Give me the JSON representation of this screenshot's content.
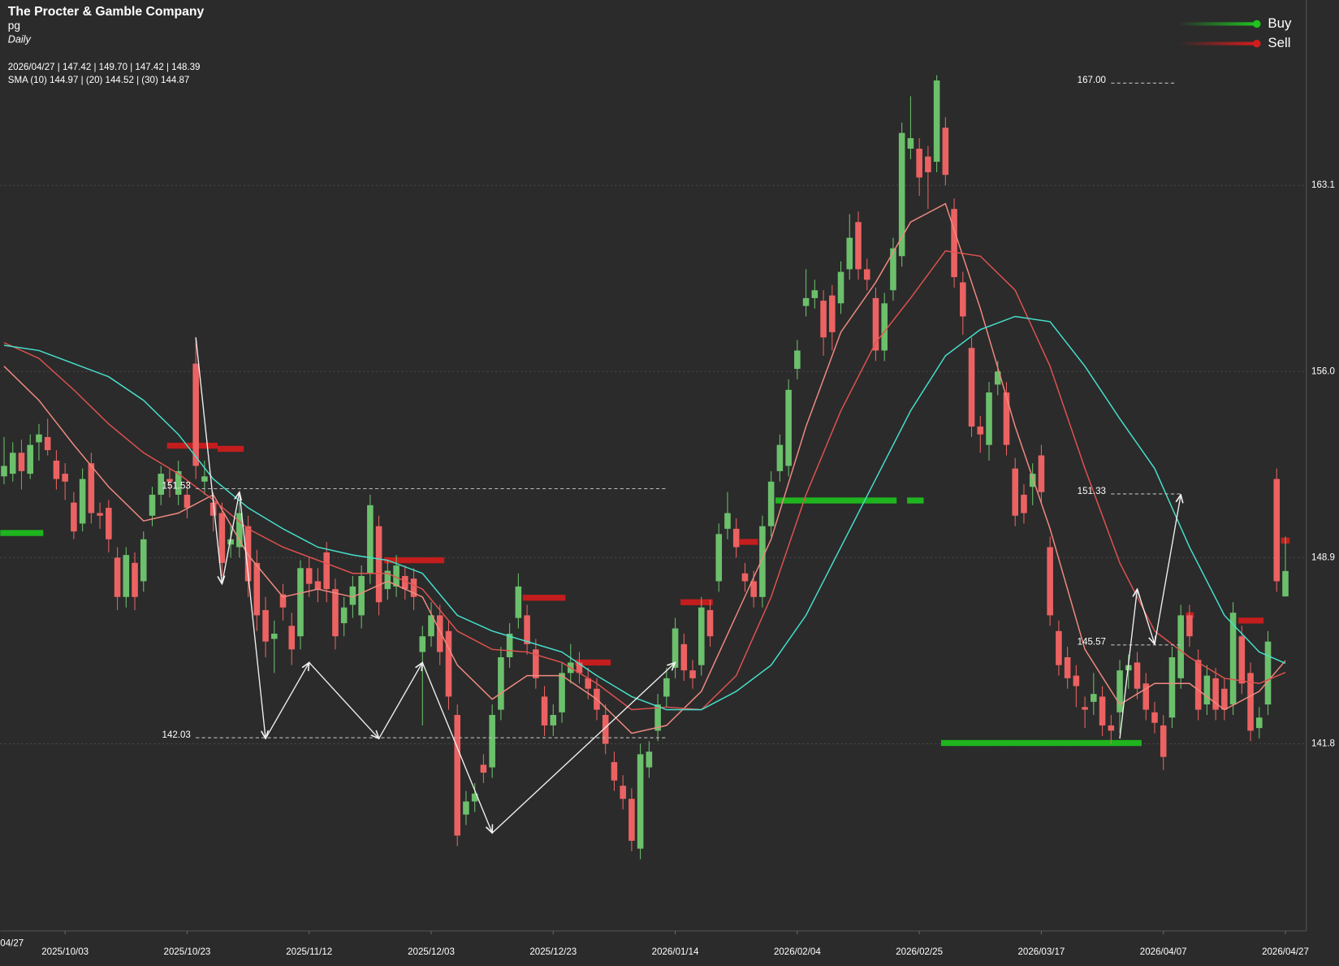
{
  "chart_data": {
    "type": "candlestick",
    "title": "The Procter & Gamble Company",
    "symbol": "pg",
    "interval": "Daily",
    "info_line": "2026/04/27 | 147.42 | 149.70 | 147.42 | 148.39",
    "sma_line": "SMA (10) 144.97 | (20) 144.52 | (30) 144.87",
    "colors": {
      "up": "#6cc06c",
      "down": "#ec6262",
      "background": "#2b2b2b",
      "grid": "#4a4a4a",
      "text": "#ffffff",
      "zigzag": "#f0f0f0",
      "level": "#bbbbbb"
    },
    "xlim": [
      -0.44,
      149.4
    ],
    "ylim": [
      134.66,
      170.17
    ],
    "yticks": [
      163.1,
      {
        "value": 156,
        "label": "156.0"
      },
      148.9,
      141.8
    ],
    "grid": true,
    "x_edge_label": "04/27",
    "xticks": [
      {
        "value": 7,
        "label": "2025/10/03"
      },
      {
        "value": 21,
        "label": "2025/10/23"
      },
      {
        "value": 35,
        "label": "2025/11/12"
      },
      {
        "value": 49,
        "label": "2025/12/03"
      },
      {
        "value": 63,
        "label": "2025/12/23"
      },
      {
        "value": 77,
        "label": "2026/01/14"
      },
      {
        "value": 91,
        "label": "2026/02/04"
      },
      {
        "value": 105,
        "label": "2026/02/25"
      },
      {
        "value": 119,
        "label": "2026/03/17"
      },
      {
        "value": 133,
        "label": "2026/04/07"
      },
      {
        "value": 147,
        "label": "2026/04/27"
      }
    ],
    "ohlc": [
      [
        152.0,
        153.5,
        151.7,
        152.4
      ],
      [
        152.1,
        153.3,
        151.8,
        152.9
      ],
      [
        152.9,
        153.4,
        151.5,
        152.2
      ],
      [
        152.1,
        153.6,
        151.9,
        153.2
      ],
      [
        153.3,
        154.0,
        152.6,
        153.6
      ],
      [
        153.5,
        154.2,
        152.8,
        153.0
      ],
      [
        152.6,
        153.0,
        151.5,
        151.9
      ],
      [
        152.1,
        152.5,
        151.1,
        151.8
      ],
      [
        151.0,
        151.4,
        149.6,
        149.9
      ],
      [
        150.2,
        152.3,
        149.9,
        151.9
      ],
      [
        152.5,
        152.9,
        150.2,
        150.6
      ],
      [
        150.6,
        151.0,
        150.0,
        150.5
      ],
      [
        150.8,
        151.1,
        149.1,
        149.6
      ],
      [
        148.9,
        149.3,
        146.9,
        147.4
      ],
      [
        147.4,
        149.3,
        147.0,
        149.0
      ],
      [
        148.7,
        149.1,
        146.9,
        147.4
      ],
      [
        148.0,
        149.9,
        147.6,
        149.6
      ],
      [
        150.5,
        151.6,
        150.1,
        151.3
      ],
      [
        151.3,
        152.4,
        150.9,
        152.1
      ],
      [
        151.9,
        152.3,
        151.2,
        151.8
      ],
      [
        151.3,
        152.6,
        150.9,
        152.2
      ],
      [
        151.3,
        151.8,
        150.4,
        150.8
      ],
      [
        156.3,
        157.3,
        151.9,
        152.4
      ],
      [
        151.8,
        152.6,
        151.3,
        152.0
      ],
      [
        151.0,
        151.4,
        149.9,
        150.5
      ],
      [
        150.6,
        151.0,
        148.2,
        148.7
      ],
      [
        149.4,
        150.1,
        148.9,
        149.6
      ],
      [
        149.3,
        151.0,
        148.9,
        150.6
      ],
      [
        150.1,
        150.5,
        147.4,
        148.0
      ],
      [
        148.7,
        149.2,
        146.1,
        146.7
      ],
      [
        146.9,
        147.4,
        145.1,
        145.7
      ],
      [
        145.8,
        146.5,
        144.5,
        146.0
      ],
      [
        147.5,
        147.9,
        146.5,
        147.0
      ],
      [
        146.3,
        146.8,
        144.8,
        145.4
      ],
      [
        145.9,
        148.8,
        145.4,
        148.5
      ],
      [
        148.5,
        148.9,
        147.4,
        147.9
      ],
      [
        148.0,
        148.5,
        147.2,
        147.7
      ],
      [
        149.1,
        149.5,
        147.2,
        147.7
      ],
      [
        147.7,
        148.1,
        145.4,
        145.9
      ],
      [
        146.4,
        147.4,
        145.9,
        147.0
      ],
      [
        147.1,
        148.2,
        146.6,
        147.8
      ],
      [
        146.7,
        148.6,
        146.2,
        148.2
      ],
      [
        148.3,
        151.3,
        147.9,
        150.9
      ],
      [
        150.1,
        150.5,
        146.7,
        147.2
      ],
      [
        147.7,
        148.8,
        147.3,
        148.4
      ],
      [
        147.8,
        149.0,
        147.4,
        148.6
      ],
      [
        148.2,
        148.6,
        147.3,
        147.7
      ],
      [
        148.1,
        148.5,
        146.9,
        147.4
      ],
      [
        145.3,
        146.3,
        142.5,
        145.9
      ],
      [
        145.9,
        147.2,
        145.5,
        146.7
      ],
      [
        146.7,
        147.1,
        144.8,
        145.3
      ],
      [
        146.1,
        146.5,
        143.1,
        143.6
      ],
      [
        142.9,
        143.3,
        137.9,
        138.3
      ],
      [
        139.1,
        140.0,
        138.7,
        139.6
      ],
      [
        139.6,
        140.3,
        139.2,
        139.9
      ],
      [
        141.0,
        141.4,
        140.3,
        140.7
      ],
      [
        140.9,
        143.3,
        140.5,
        142.9
      ],
      [
        143.1,
        145.5,
        142.7,
        145.1
      ],
      [
        145.1,
        146.4,
        144.7,
        146.0
      ],
      [
        146.6,
        148.3,
        146.2,
        147.8
      ],
      [
        146.7,
        147.1,
        145.2,
        145.6
      ],
      [
        145.4,
        145.8,
        143.9,
        144.3
      ],
      [
        143.6,
        144.0,
        142.1,
        142.5
      ],
      [
        142.5,
        143.3,
        142.1,
        142.9
      ],
      [
        143.0,
        144.9,
        142.6,
        144.5
      ],
      [
        144.5,
        145.6,
        144.1,
        144.9
      ],
      [
        144.9,
        145.3,
        144.1,
        144.5
      ],
      [
        144.3,
        144.7,
        143.5,
        143.9
      ],
      [
        143.9,
        144.3,
        142.7,
        143.1
      ],
      [
        142.9,
        143.3,
        141.4,
        141.8
      ],
      [
        141.1,
        141.5,
        140.0,
        140.4
      ],
      [
        140.2,
        140.6,
        139.3,
        139.7
      ],
      [
        139.7,
        140.1,
        137.7,
        138.1
      ],
      [
        137.8,
        141.8,
        137.4,
        141.4
      ],
      [
        140.9,
        141.9,
        140.5,
        141.5
      ],
      [
        142.3,
        143.7,
        141.9,
        143.3
      ],
      [
        143.6,
        144.7,
        143.2,
        144.3
      ],
      [
        144.7,
        146.6,
        144.3,
        146.2
      ],
      [
        145.6,
        146.0,
        144.2,
        144.6
      ],
      [
        144.6,
        145.0,
        143.9,
        144.3
      ],
      [
        144.8,
        147.4,
        144.4,
        147.0
      ],
      [
        146.9,
        147.3,
        145.5,
        145.9
      ],
      [
        148.0,
        150.2,
        147.6,
        149.8
      ],
      [
        150.0,
        151.4,
        149.6,
        150.6
      ],
      [
        150.0,
        150.4,
        148.9,
        149.3
      ],
      [
        148.3,
        148.7,
        147.6,
        148.0
      ],
      [
        148.0,
        148.4,
        147.0,
        147.4
      ],
      [
        147.4,
        150.5,
        147.0,
        150.1
      ],
      [
        150.1,
        152.2,
        149.7,
        151.8
      ],
      [
        152.2,
        153.6,
        151.8,
        153.2
      ],
      [
        152.4,
        155.7,
        152.0,
        155.3
      ],
      [
        156.1,
        157.2,
        155.7,
        156.8
      ],
      [
        158.5,
        159.9,
        158.1,
        158.8
      ],
      [
        158.8,
        159.5,
        158.4,
        159.1
      ],
      [
        158.7,
        159.1,
        156.6,
        157.3
      ],
      [
        158.9,
        159.3,
        156.8,
        157.5
      ],
      [
        158.6,
        160.2,
        158.2,
        159.8
      ],
      [
        159.9,
        162.0,
        159.5,
        161.1
      ],
      [
        161.7,
        162.1,
        159.5,
        159.9
      ],
      [
        159.9,
        160.3,
        159.1,
        159.5
      ],
      [
        158.8,
        159.2,
        156.4,
        156.8
      ],
      [
        156.8,
        159.0,
        156.4,
        158.6
      ],
      [
        159.1,
        161.1,
        158.7,
        160.7
      ],
      [
        160.4,
        165.5,
        160.0,
        165.1
      ],
      [
        164.5,
        166.5,
        164.1,
        164.9
      ],
      [
        164.5,
        164.9,
        162.7,
        163.4
      ],
      [
        164.2,
        164.6,
        162.2,
        163.6
      ],
      [
        164.0,
        167.3,
        163.6,
        167.1
      ],
      [
        165.3,
        165.7,
        163.1,
        163.5
      ],
      [
        162.2,
        162.6,
        159.2,
        159.6
      ],
      [
        159.4,
        159.8,
        157.4,
        158.1
      ],
      [
        156.9,
        157.3,
        153.5,
        153.9
      ],
      [
        153.9,
        154.3,
        152.9,
        153.6
      ],
      [
        153.2,
        155.6,
        152.6,
        155.2
      ],
      [
        155.5,
        156.4,
        155.1,
        156.0
      ],
      [
        155.2,
        155.6,
        152.8,
        153.2
      ],
      [
        152.3,
        152.7,
        150.1,
        150.5
      ],
      [
        151.3,
        151.7,
        150.2,
        150.6
      ],
      [
        151.6,
        152.5,
        150.9,
        152.1
      ],
      [
        152.8,
        153.2,
        151.0,
        151.4
      ],
      [
        149.3,
        149.7,
        146.3,
        146.7
      ],
      [
        146.1,
        146.5,
        144.4,
        144.8
      ],
      [
        145.1,
        145.5,
        143.9,
        144.3
      ],
      [
        144.4,
        144.8,
        143.2,
        144.0
      ],
      [
        143.2,
        143.6,
        142.4,
        143.1
      ],
      [
        143.4,
        144.5,
        142.9,
        143.7
      ],
      [
        143.6,
        144.0,
        142.1,
        142.5
      ],
      [
        142.5,
        142.9,
        141.8,
        142.3
      ],
      [
        143.0,
        145.0,
        142.2,
        144.6
      ],
      [
        144.6,
        145.2,
        143.9,
        144.8
      ],
      [
        144.9,
        145.3,
        143.5,
        143.9
      ],
      [
        144.1,
        144.5,
        142.7,
        143.1
      ],
      [
        143.0,
        143.4,
        142.2,
        142.6
      ],
      [
        142.5,
        142.9,
        140.8,
        141.3
      ],
      [
        142.8,
        145.5,
        142.4,
        145.1
      ],
      [
        144.3,
        147.1,
        143.9,
        146.7
      ],
      [
        146.7,
        147.1,
        145.5,
        145.9
      ],
      [
        145.0,
        145.4,
        142.7,
        143.1
      ],
      [
        143.3,
        144.8,
        142.9,
        144.4
      ],
      [
        144.3,
        144.7,
        142.7,
        143.1
      ],
      [
        143.9,
        144.3,
        142.7,
        143.1
      ],
      [
        143.3,
        147.2,
        142.9,
        146.8
      ],
      [
        145.9,
        146.3,
        143.7,
        144.1
      ],
      [
        144.5,
        144.9,
        141.9,
        142.3
      ],
      [
        142.4,
        143.2,
        142.0,
        142.8
      ],
      [
        143.3,
        146.1,
        142.9,
        145.7
      ],
      [
        151.9,
        152.3,
        147.6,
        148.0
      ],
      [
        147.42,
        149.7,
        147.42,
        148.39
      ]
    ],
    "sma": {
      "x": [
        0,
        4,
        8,
        12,
        16,
        20,
        24,
        28,
        32,
        36,
        40,
        44,
        48,
        52,
        56,
        60,
        64,
        68,
        72,
        76,
        80,
        84,
        88,
        92,
        96,
        100,
        104,
        108,
        112,
        116,
        120,
        124,
        128,
        132,
        136,
        140,
        144,
        147
      ],
      "series": [
        {
          "color": "#f08a80",
          "values": [
            156.2,
            154.9,
            153.2,
            151.6,
            150.3,
            150.6,
            151.3,
            149.0,
            147.4,
            147.7,
            147.4,
            148.0,
            147.4,
            144.8,
            143.5,
            144.4,
            144.4,
            143.5,
            142.2,
            142.5,
            143.8,
            146.7,
            149.6,
            153.9,
            157.5,
            159.4,
            161.7,
            162.4,
            158.4,
            153.9,
            150.0,
            145.4,
            143.3,
            144.1,
            144.1,
            143.1,
            143.8,
            144.97
          ]
        },
        {
          "color": "#e0524f",
          "values": [
            157.1,
            156.5,
            155.3,
            154.0,
            152.9,
            152.1,
            151.1,
            150.0,
            149.3,
            148.8,
            148.3,
            148.3,
            147.7,
            146.1,
            145.4,
            145.3,
            144.9,
            144.1,
            143.1,
            143.2,
            143.1,
            144.4,
            147.4,
            151.3,
            154.5,
            157.1,
            158.8,
            160.6,
            160.4,
            159.1,
            156.2,
            152.3,
            148.7,
            146.1,
            145.1,
            144.3,
            144.1,
            144.52
          ]
        },
        {
          "color": "#46e0cc",
          "values": [
            157.0,
            156.8,
            156.3,
            155.8,
            154.9,
            153.6,
            151.9,
            150.8,
            150.0,
            149.3,
            149.0,
            148.8,
            148.3,
            146.7,
            146.1,
            145.7,
            145.3,
            144.4,
            143.6,
            143.1,
            143.1,
            143.8,
            144.8,
            146.7,
            149.3,
            151.9,
            154.5,
            156.6,
            157.6,
            158.1,
            157.9,
            156.2,
            154.2,
            152.3,
            149.3,
            146.7,
            145.3,
            144.87
          ]
        }
      ]
    },
    "zigzag": [
      {
        "x": [
          22,
          25,
          27,
          30,
          35,
          43,
          48,
          56,
          77
        ],
        "y": [
          157.3,
          147.9,
          151.4,
          142.0,
          144.9,
          142.0,
          144.9,
          138.4,
          144.9
        ]
      },
      {
        "x": [
          128,
          130,
          132,
          135
        ],
        "y": [
          142.0,
          147.7,
          145.6,
          151.3
        ]
      }
    ],
    "levels": [
      {
        "value": 151.53,
        "from": 22,
        "to": 76
      },
      {
        "value": 142.03,
        "from": 22,
        "to": 76
      },
      {
        "value": {
          "value": 167,
          "label": "167.00"
        },
        "from": 127,
        "to": 134.4
      },
      {
        "value": 151.33,
        "from": 127,
        "to": 135
      },
      {
        "value": 145.57,
        "from": 127,
        "to": 135
      }
    ],
    "signals": [
      {
        "name": "Buy",
        "color": "#1ec41e",
        "bars": [
          {
            "from": -0.44,
            "to": 4.5,
            "value": 149.84
          },
          {
            "from": 88.5,
            "to": 102.4,
            "value": 151.08
          },
          {
            "from": 103.6,
            "to": 105.5,
            "value": 151.08
          },
          {
            "from": 107.5,
            "to": 130.5,
            "value": 141.83
          }
        ]
      },
      {
        "name": "Sell",
        "color": "#d41c1c",
        "bars": [
          {
            "from": 18.7,
            "to": 24.5,
            "value": 153.17
          },
          {
            "from": 24.5,
            "to": 27.5,
            "value": 153.05
          },
          {
            "from": 43.6,
            "to": 50.5,
            "value": 148.8
          },
          {
            "from": 59.5,
            "to": 64.4,
            "value": 147.37
          },
          {
            "from": 65.5,
            "to": 69.6,
            "value": 144.9
          },
          {
            "from": 77.6,
            "to": 81.3,
            "value": 147.2
          },
          {
            "from": 84.4,
            "to": 86.5,
            "value": 149.5
          },
          {
            "from": 135.6,
            "to": 136.5,
            "value": 146.7
          },
          {
            "from": 141.6,
            "to": 144.5,
            "value": 146.5
          },
          {
            "from": 146.5,
            "to": 147.5,
            "value": 149.55
          }
        ]
      }
    ]
  }
}
